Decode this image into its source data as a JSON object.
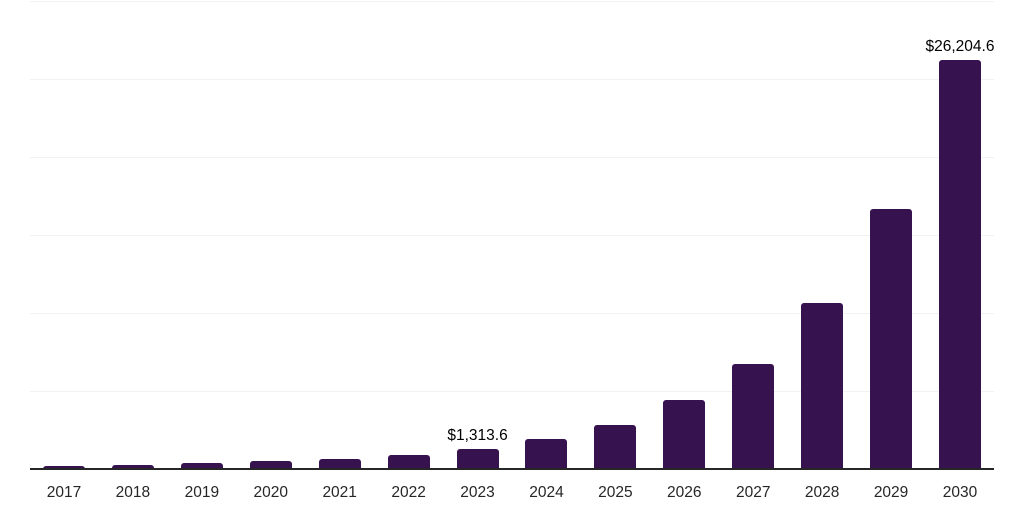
{
  "chart_data": {
    "type": "bar",
    "title": "",
    "xlabel": "",
    "ylabel": "",
    "categories": [
      "2017",
      "2018",
      "2019",
      "2020",
      "2021",
      "2022",
      "2023",
      "2024",
      "2025",
      "2026",
      "2027",
      "2028",
      "2029",
      "2030"
    ],
    "values": [
      205,
      270,
      400,
      530,
      610,
      915,
      1313.6,
      1950,
      2850,
      4430,
      6760,
      10640,
      16660,
      26204.6
    ],
    "point_labels": [
      {
        "index": 6,
        "text": "$1,313.6"
      },
      {
        "index": 13,
        "text": "$26,204.6"
      }
    ],
    "ylim": [
      0,
      30000
    ],
    "gridline_step": 5000,
    "grid": true,
    "legend": false,
    "y_axis_labels_visible": false
  },
  "colors": {
    "background": "#ffffff",
    "bar": "#36124e",
    "gridline": "#f2f2f2",
    "axis_line": "#262626",
    "tick_label": "#262626",
    "value_label": "#000000"
  }
}
